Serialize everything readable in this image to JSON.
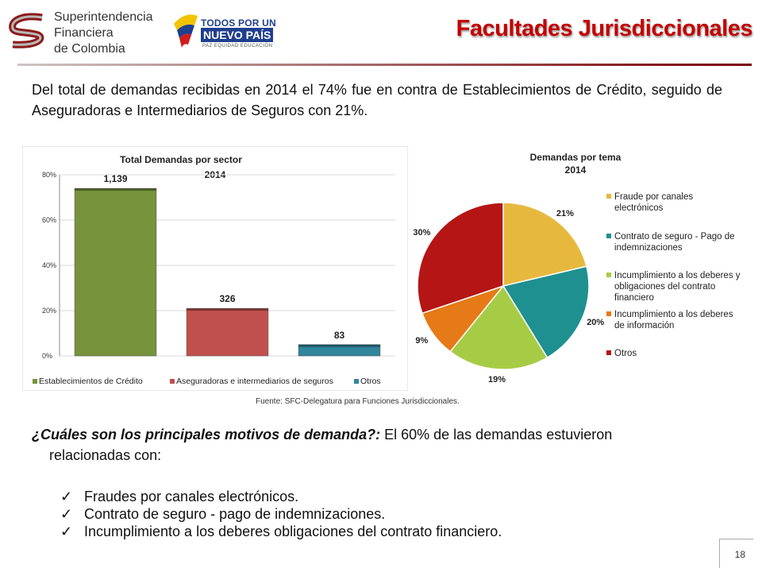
{
  "header": {
    "org_name": [
      "Superintendencia",
      "Financiera",
      "de Colombia"
    ],
    "gov_logo": {
      "line1": "TODOS POR UN",
      "line2": "NUEVO PAÍS",
      "line3": "PAZ EQUIDAD EDUCACIÓN"
    },
    "title": "Facultades Jurisdiccionales"
  },
  "intro_text": "Del total de demandas recibidas en 2014 el 74% fue en contra de Establecimientos de Crédito, seguido de Aseguradoras e Intermediarios de Seguros con 21%.",
  "chart_data": [
    {
      "type": "bar",
      "title": "Total Demandas por sector",
      "subtitle": "2014",
      "categories": [
        "Establecimientos de Crédito",
        "Aseguradoras e intermediarios de seguros",
        "Otros"
      ],
      "values": [
        0.74,
        0.21,
        0.05
      ],
      "data_labels": [
        "1,139",
        "326",
        "83"
      ],
      "colors": [
        "#77933c",
        "#c0504d",
        "#31859c"
      ],
      "ylim": [
        0,
        0.8
      ],
      "yticks": [
        "0%",
        "20%",
        "40%",
        "60%",
        "80%"
      ],
      "grid": true,
      "legend": "bottom"
    },
    {
      "type": "pie",
      "title": "Demandas por tema",
      "subtitle": "2014",
      "categories": [
        "Fraude por canales electrónicos",
        "Contrato de seguro - Pago de indemnizaciones",
        "Incumplimiento a los deberes y obligaciones del contrato financiero",
        "Incumplimiento a los deberes de información",
        "Otros"
      ],
      "values": [
        21,
        20,
        19,
        9,
        30
      ],
      "data_labels": [
        "21%",
        "20%",
        "19%",
        "9%",
        "30%"
      ],
      "colors": [
        "#e6b93e",
        "#1e9090",
        "#a6cc46",
        "#e57a17",
        "#b51515"
      ],
      "legend": "right"
    }
  ],
  "fuente": "Fuente: SFC-Delegatura para Funciones Jurisdiccionales.",
  "question": {
    "lead": "¿Cuáles son los principales motivos de demanda?:",
    "rest": " El 60% de las demandas estuvieron",
    "cont": "relacionadas con:"
  },
  "reasons": [
    "Fraudes por canales electrónicos.",
    "Contrato de seguro - pago de indemnizaciones.",
    "Incumplimiento a los deberes  obligaciones del contrato financiero."
  ],
  "page_number": "18"
}
